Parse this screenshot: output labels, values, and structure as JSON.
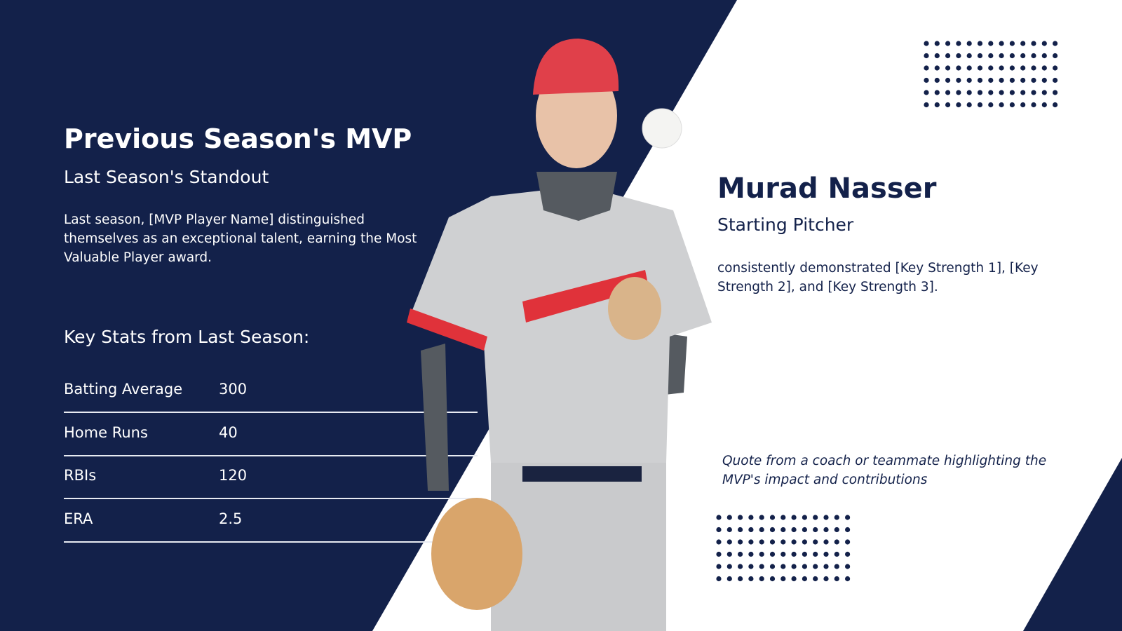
{
  "header": {
    "title": "Previous Season's MVP",
    "subtitle": "Last Season's Standout",
    "body": "Last season, [MVP Player Name] distinguished themselves as an exceptional talent, earning the Most Valuable Player award."
  },
  "stats": {
    "heading": "Key Stats from Last Season:",
    "rows": [
      [
        "Batting Average",
        "300"
      ],
      [
        "Home Runs",
        "40"
      ],
      [
        "RBIs",
        "120"
      ],
      [
        "ERA",
        "2.5"
      ]
    ]
  },
  "player": {
    "name": "Murad Nasser",
    "position": "Starting Pitcher",
    "strengths": "consistently demonstrated [Key Strength 1], [Key Strength 2], and [Key Strength 3].",
    "quote": "Quote from a coach or teammate highlighting the MVP's impact and contributions"
  }
}
